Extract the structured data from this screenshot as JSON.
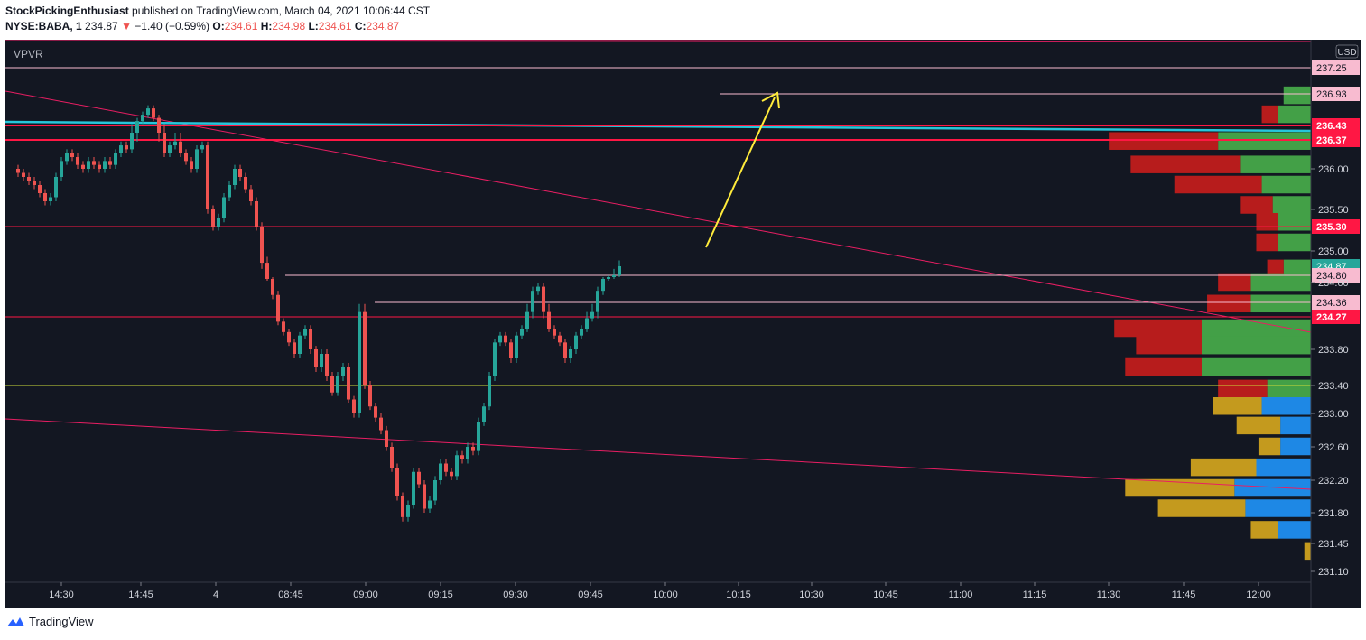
{
  "header": {
    "author": "StockPickingEnthusiast",
    "published_text": "published on TradingView.com, March 04, 2021 10:06:44 CST",
    "symbol": "NYSE:BABA, 1",
    "last_price": "234.87",
    "change": "−1.40 (−0.59%)",
    "o_label": "O:",
    "o_value": "234.61",
    "h_label": "H:",
    "h_value": "234.98",
    "l_label": "L:",
    "l_value": "234.61",
    "c_label": "C:",
    "c_value": "234.87"
  },
  "indicator_label": "VPVR",
  "currency": "USD",
  "brand": "TradingView",
  "colors": {
    "bg": "#131722",
    "up": "#26a69a",
    "down": "#ef5350",
    "grid": "#363a45",
    "arrow": "#ffeb3b"
  },
  "price_axis": {
    "ticks": [
      "236.00",
      "235.50",
      "235.00",
      "234.60",
      "233.80",
      "233.40",
      "233.00",
      "232.60",
      "232.20",
      "231.80",
      "231.45",
      "231.10"
    ],
    "labels": [
      {
        "text": "237.25",
        "style": "pink"
      },
      {
        "text": "236.93",
        "style": "pink"
      },
      {
        "text": "236.43",
        "style": "red"
      },
      {
        "text": "236.37",
        "style": "red"
      },
      {
        "text": "235.30",
        "style": "red"
      },
      {
        "text": "234.87",
        "style": "green"
      },
      {
        "text": "234.80",
        "style": "pink"
      },
      {
        "text": "234.36",
        "style": "pink"
      },
      {
        "text": "234.27",
        "style": "red"
      }
    ]
  },
  "time_axis": [
    "14:30",
    "14:45",
    "4",
    "08:45",
    "09:00",
    "09:15",
    "09:30",
    "09:45",
    "10:00",
    "10:15",
    "10:30",
    "10:45",
    "11:00",
    "11:15",
    "11:30",
    "11:45",
    "12:00"
  ],
  "chart_data": {
    "type": "candlestick",
    "symbol": "NYSE:BABA",
    "interval": "1",
    "currency": "USD",
    "closes": [
      236.0,
      235.95,
      235.9,
      235.85,
      235.8,
      235.7,
      235.6,
      235.65,
      235.9,
      236.1,
      236.2,
      236.15,
      236.05,
      236.0,
      236.1,
      236.05,
      236.0,
      236.1,
      236.05,
      236.2,
      236.3,
      236.25,
      236.4,
      236.5,
      236.6,
      236.7,
      236.55,
      236.4,
      236.2,
      236.3,
      236.35,
      236.2,
      236.1,
      236.0,
      236.25,
      236.3,
      235.5,
      235.3,
      235.4,
      235.65,
      235.8,
      236.0,
      235.9,
      235.75,
      235.6,
      235.3,
      234.9,
      234.7,
      234.45,
      234.2,
      234.05,
      233.9,
      233.75,
      234.0,
      234.1,
      233.8,
      233.6,
      233.75,
      233.5,
      233.3,
      233.5,
      233.6,
      233.2,
      233.0,
      234.3,
      233.4,
      233.1,
      232.95,
      232.8,
      232.6,
      232.35,
      232.0,
      231.75,
      231.9,
      232.3,
      232.15,
      231.85,
      231.95,
      232.2,
      232.4,
      232.3,
      232.25,
      232.5,
      232.45,
      232.6,
      232.55,
      232.9,
      233.1,
      233.5,
      233.9,
      234.0,
      233.9,
      233.7,
      234.0,
      234.1,
      234.3,
      234.5,
      234.55,
      234.3,
      234.1,
      234.0,
      233.9,
      233.7,
      233.8,
      234.0,
      234.1,
      234.25,
      234.3,
      234.5,
      234.7,
      234.75,
      234.8,
      234.87
    ],
    "horizontal_levels": [
      237.25,
      236.93,
      236.43,
      236.37,
      235.3,
      234.8,
      234.36,
      234.27,
      233.4
    ],
    "volume_profile": {
      "rows": [
        {
          "price": 236.9,
          "up": 0.25,
          "down": 0.0,
          "ua": 0.02
        },
        {
          "price": 236.6,
          "up": 0.3,
          "down": 0.15
        },
        {
          "price": 236.35,
          "up": 0.85,
          "down": 1.0
        },
        {
          "price": 236.05,
          "up": 0.65,
          "down": 1.0
        },
        {
          "price": 235.8,
          "up": 0.45,
          "down": 0.8
        },
        {
          "price": 235.55,
          "up": 0.35,
          "down": 0.3
        },
        {
          "price": 235.35,
          "up": 0.3,
          "down": 0.2
        },
        {
          "price": 235.1,
          "up": 0.3,
          "down": 0.2
        },
        {
          "price": 234.85,
          "up": 0.25,
          "down": 0.15
        },
        {
          "price": 234.6,
          "up": 0.55,
          "down": 0.3
        },
        {
          "price": 234.35,
          "up": 0.55,
          "down": 0.4
        },
        {
          "price": 234.1,
          "up": 1.0,
          "down": 0.8
        },
        {
          "price": 233.85,
          "up": 1.0,
          "down": 0.6
        },
        {
          "price": 233.6,
          "up": 1.0,
          "down": 0.7
        },
        {
          "price": 233.35,
          "up": 0.4,
          "down": 0.45
        }
      ],
      "rows_after_hours": [
        {
          "price": 233.1,
          "up": 0.45,
          "down": 0.45
        },
        {
          "price": 232.85,
          "up": 0.28,
          "down": 0.4
        },
        {
          "price": 232.6,
          "up": 0.28,
          "down": 0.2
        },
        {
          "price": 232.35,
          "up": 0.5,
          "down": 0.6
        },
        {
          "price": 232.1,
          "up": 0.7,
          "down": 1.0
        },
        {
          "price": 231.85,
          "up": 0.6,
          "down": 0.8
        },
        {
          "price": 231.6,
          "up": 0.3,
          "down": 0.25
        },
        {
          "price": 231.35,
          "up": 0.0,
          "down": 0.06
        }
      ]
    }
  }
}
